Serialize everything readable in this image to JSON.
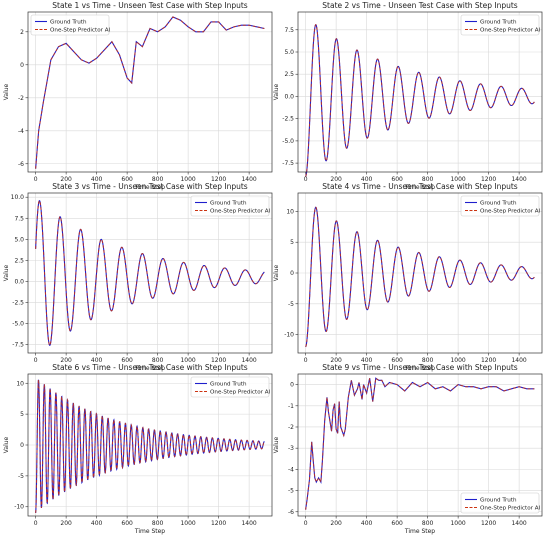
{
  "chart_data": [
    {
      "type": "line",
      "title": "State 1 vs Time - Unseen Test Case with Step Inputs",
      "xlabel": "Time Step",
      "ylabel": "Value",
      "xlim": [
        -50,
        1550
      ],
      "ylim": [
        -6.5,
        3.2
      ],
      "xticks": [
        0,
        200,
        400,
        600,
        800,
        1000,
        1200,
        1400
      ],
      "yticks": [
        -6,
        -4,
        -2,
        0,
        2
      ],
      "grid": true,
      "legend": "top-left",
      "series": [
        {
          "name": "Ground Truth",
          "color": "#1f1fcc",
          "style": "solid"
        },
        {
          "name": "One-Step Predictor AI",
          "color": "#cc3311",
          "style": "dashed"
        }
      ],
      "x": [
        0,
        20,
        50,
        100,
        150,
        200,
        250,
        300,
        350,
        400,
        450,
        500,
        550,
        600,
        630,
        660,
        700,
        750,
        800,
        850,
        900,
        950,
        1000,
        1050,
        1100,
        1150,
        1200,
        1250,
        1300,
        1350,
        1400,
        1450,
        1500
      ],
      "values": [
        -6.3,
        -4.0,
        -2.3,
        0.3,
        1.1,
        1.3,
        0.8,
        0.3,
        0.1,
        0.4,
        0.9,
        1.4,
        0.6,
        -0.8,
        -1.1,
        1.4,
        1.1,
        2.2,
        2.0,
        2.3,
        2.9,
        2.7,
        2.3,
        2.0,
        2.0,
        2.6,
        2.6,
        2.1,
        2.3,
        2.4,
        2.4,
        2.3,
        2.2
      ]
    },
    {
      "type": "line",
      "title": "State 2 vs Time - Unseen Test Case with Step Inputs",
      "xlabel": "Time Step",
      "ylabel": "Value",
      "xlim": [
        -50,
        1550
      ],
      "ylim": [
        -8.5,
        9.5
      ],
      "xticks": [
        0,
        200,
        400,
        600,
        800,
        1000,
        1200,
        1400
      ],
      "yticks": [
        -7.5,
        -5.0,
        -2.5,
        0.0,
        2.5,
        5.0,
        7.5
      ],
      "grid": true,
      "legend": "top-right",
      "series": [
        {
          "name": "Ground Truth",
          "color": "#1f1fcc",
          "style": "solid"
        },
        {
          "name": "One-Step Predictor AI",
          "color": "#cc3311",
          "style": "dashed"
        }
      ],
      "oscillation": {
        "offset": 0,
        "amplitude_start": 9.0,
        "amplitude_end": 0.8,
        "period": 135,
        "phase_start": "min",
        "x_end": 1500
      }
    },
    {
      "type": "line",
      "title": "State 3 vs Time - Unseen Test Case with Step Inputs",
      "xlabel": "Time Step",
      "ylabel": "Value",
      "xlim": [
        -50,
        1550
      ],
      "ylim": [
        -8.5,
        10.5
      ],
      "xticks": [
        0,
        200,
        400,
        600,
        800,
        1000,
        1200,
        1400
      ],
      "yticks": [
        -7.5,
        -5.0,
        -2.5,
        0.0,
        2.5,
        5.0,
        7.5,
        10.0
      ],
      "grid": true,
      "legend": "top-right",
      "series": [
        {
          "name": "Ground Truth",
          "color": "#1f1fcc",
          "style": "solid"
        },
        {
          "name": "One-Step Predictor AI",
          "color": "#cc3311",
          "style": "dashed"
        }
      ],
      "oscillation": {
        "offset": 0.5,
        "amplitude_start": 9.5,
        "amplitude_end": 0.7,
        "period": 135,
        "phase_start": "rising",
        "x_end": 1500
      }
    },
    {
      "type": "line",
      "title": "State 4 vs Time - Unseen Test Case with Step Inputs",
      "xlabel": "Time Step",
      "ylabel": "Value",
      "xlim": [
        -50,
        1550
      ],
      "ylim": [
        -13,
        13
      ],
      "xticks": [
        0,
        200,
        400,
        600,
        800,
        1000,
        1200,
        1400
      ],
      "yticks": [
        -10,
        -5,
        0,
        5,
        10
      ],
      "grid": true,
      "legend": "top-right",
      "series": [
        {
          "name": "Ground Truth",
          "color": "#1f1fcc",
          "style": "solid"
        },
        {
          "name": "One-Step Predictor AI",
          "color": "#cc3311",
          "style": "dashed"
        }
      ],
      "oscillation": {
        "offset": 0,
        "amplitude_start": 12.0,
        "amplitude_end": 0.9,
        "period": 135,
        "phase_start": "min",
        "x_end": 1500
      }
    },
    {
      "type": "line",
      "title": "State 6 vs Time - Unseen Test Case with Step Inputs",
      "xlabel": "Time Step",
      "ylabel": "Value",
      "xlim": [
        -50,
        1550
      ],
      "ylim": [
        -11.5,
        11.5
      ],
      "xticks": [
        0,
        200,
        400,
        600,
        800,
        1000,
        1200,
        1400
      ],
      "yticks": [
        -10,
        -5,
        0,
        5,
        10
      ],
      "grid": true,
      "legend": "top-right",
      "series": [
        {
          "name": "Ground Truth",
          "color": "#1f1fcc",
          "style": "solid"
        },
        {
          "name": "One-Step Predictor AI",
          "color": "#cc3311",
          "style": "dashed"
        }
      ],
      "oscillation": {
        "offset": 0,
        "amplitude_start": 11.0,
        "amplitude_end": 0.6,
        "period": 38,
        "phase_start": "min",
        "x_end": 1500
      }
    },
    {
      "type": "line",
      "title": "State 9 vs Time - Unseen Test Case with Step Inputs",
      "xlabel": "Time Step",
      "ylabel": "Value",
      "xlim": [
        -50,
        1550
      ],
      "ylim": [
        -6.2,
        0.5
      ],
      "xticks": [
        0,
        200,
        400,
        600,
        800,
        1000,
        1200,
        1400
      ],
      "yticks": [
        -6,
        -5,
        -4,
        -3,
        -2,
        -1,
        0
      ],
      "grid": true,
      "legend": "bottom-right",
      "series": [
        {
          "name": "Ground Truth",
          "color": "#1f1fcc",
          "style": "solid"
        },
        {
          "name": "One-Step Predictor AI",
          "color": "#cc3311",
          "style": "dashed"
        }
      ],
      "x": [
        0,
        10,
        25,
        40,
        50,
        60,
        70,
        85,
        100,
        110,
        125,
        140,
        150,
        170,
        180,
        190,
        200,
        210,
        220,
        230,
        250,
        260,
        280,
        300,
        320,
        340,
        350,
        370,
        380,
        400,
        420,
        440,
        460,
        480,
        500,
        520,
        550,
        600,
        650,
        700,
        750,
        800,
        850,
        900,
        950,
        1000,
        1050,
        1100,
        1150,
        1200,
        1250,
        1300,
        1350,
        1400,
        1450,
        1500
      ],
      "values": [
        -5.9,
        -5.4,
        -4.5,
        -2.7,
        -3.6,
        -4.4,
        -4.6,
        -4.4,
        -4.6,
        -3.6,
        -1.7,
        -0.6,
        -1.3,
        -2.2,
        -1.2,
        -0.9,
        -2.1,
        -2.3,
        -0.8,
        -2.0,
        -2.4,
        -2.1,
        -0.6,
        0.2,
        -0.5,
        -0.2,
        0.1,
        -0.7,
        0.0,
        -0.4,
        0.3,
        -0.8,
        0.3,
        0.2,
        0.2,
        -0.1,
        0.1,
        0.0,
        -0.3,
        0.1,
        -0.1,
        0.1,
        -0.2,
        -0.1,
        -0.3,
        0.0,
        -0.1,
        -0.1,
        -0.2,
        -0.1,
        -0.1,
        -0.3,
        -0.2,
        -0.1,
        -0.2,
        -0.2
      ]
    }
  ]
}
